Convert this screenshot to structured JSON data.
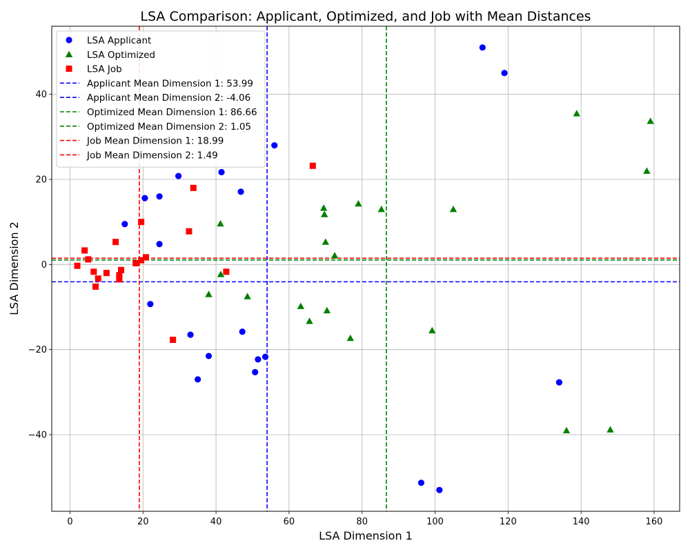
{
  "chart_data": {
    "type": "scatter",
    "title": "LSA Comparison: Applicant, Optimized, and Job with Mean Distances",
    "xlabel": "LSA Dimension 1",
    "ylabel": "LSA Dimension 2",
    "xlim": [
      -5,
      167
    ],
    "ylim": [
      -58,
      56
    ],
    "xticks": [
      0,
      20,
      40,
      60,
      80,
      100,
      120,
      140,
      160
    ],
    "yticks": [
      -40,
      -20,
      0,
      20,
      40
    ],
    "xtick_labels": [
      "0",
      "20",
      "40",
      "60",
      "80",
      "100",
      "120",
      "140",
      "160"
    ],
    "ytick_labels": [
      "−40",
      "−20",
      "0",
      "20",
      "40"
    ],
    "grid": true,
    "legend_position": "top-left",
    "series": [
      {
        "name": "LSA Applicant",
        "marker": "circle",
        "color": "#0000ff",
        "points": [
          [
            113,
            51
          ],
          [
            119,
            45
          ],
          [
            56,
            28
          ],
          [
            41.5,
            21.7
          ],
          [
            29.7,
            20.8
          ],
          [
            46.8,
            17.1
          ],
          [
            20.5,
            15.6
          ],
          [
            24.5,
            16
          ],
          [
            15,
            9.5
          ],
          [
            24.5,
            4.8
          ],
          [
            22,
            -9.3
          ],
          [
            33,
            -16.5
          ],
          [
            47.2,
            -15.8
          ],
          [
            38,
            -21.5
          ],
          [
            51.5,
            -22.3
          ],
          [
            53.5,
            -21.7
          ],
          [
            50.7,
            -25.3
          ],
          [
            35,
            -27
          ],
          [
            134,
            -27.7
          ],
          [
            96.2,
            -51.3
          ],
          [
            101.2,
            -53
          ]
        ]
      },
      {
        "name": "LSA Optimized",
        "marker": "triangle",
        "color": "#008000",
        "points": [
          [
            138.8,
            35.5
          ],
          [
            159,
            33.7
          ],
          [
            158,
            22
          ],
          [
            69.5,
            13.3
          ],
          [
            79,
            14.3
          ],
          [
            85.3,
            13
          ],
          [
            105,
            13
          ],
          [
            69.7,
            11.8
          ],
          [
            41.2,
            9.6
          ],
          [
            70,
            5.3
          ],
          [
            72.5,
            2.1
          ],
          [
            41.3,
            -2.3
          ],
          [
            38,
            -7
          ],
          [
            48.6,
            -7.5
          ],
          [
            63.2,
            -9.8
          ],
          [
            70.4,
            -10.8
          ],
          [
            65.6,
            -13.3
          ],
          [
            76.8,
            -17.3
          ],
          [
            99.2,
            -15.5
          ],
          [
            136,
            -39
          ],
          [
            148,
            -38.8
          ]
        ]
      },
      {
        "name": "LSA Job",
        "marker": "square",
        "color": "#ff0000",
        "points": [
          [
            66.5,
            23.2
          ],
          [
            33.8,
            18
          ],
          [
            19.5,
            10
          ],
          [
            32.6,
            7.8
          ],
          [
            12.5,
            5.3
          ],
          [
            4,
            3.3
          ],
          [
            5,
            1.2
          ],
          [
            20.8,
            1.7
          ],
          [
            19.5,
            1
          ],
          [
            18,
            0.3
          ],
          [
            2,
            -0.3
          ],
          [
            6.5,
            -1.7
          ],
          [
            14,
            -1.3
          ],
          [
            10,
            -2
          ],
          [
            13.5,
            -2.5
          ],
          [
            13.5,
            -3.5
          ],
          [
            7.7,
            -3.3
          ],
          [
            7,
            -5.2
          ],
          [
            42.8,
            -1.7
          ],
          [
            28.2,
            -17.7
          ]
        ]
      }
    ],
    "mean_lines": [
      {
        "label": "Applicant Mean Dimension 1: 53.99",
        "orientation": "vertical",
        "value": 53.99,
        "color": "#0000ff"
      },
      {
        "label": "Applicant Mean Dimension 2: -4.06",
        "orientation": "horizontal",
        "value": -4.06,
        "color": "#0000ff"
      },
      {
        "label": "Optimized Mean Dimension 1: 86.66",
        "orientation": "vertical",
        "value": 86.66,
        "color": "#008000"
      },
      {
        "label": "Optimized Mean Dimension 2: 1.05",
        "orientation": "horizontal",
        "value": 1.05,
        "color": "#008000"
      },
      {
        "label": "Job Mean Dimension 1: 18.99",
        "orientation": "vertical",
        "value": 18.99,
        "color": "#ff0000"
      },
      {
        "label": "Job Mean Dimension 2: 1.49",
        "orientation": "horizontal",
        "value": 1.49,
        "color": "#ff0000"
      }
    ]
  }
}
